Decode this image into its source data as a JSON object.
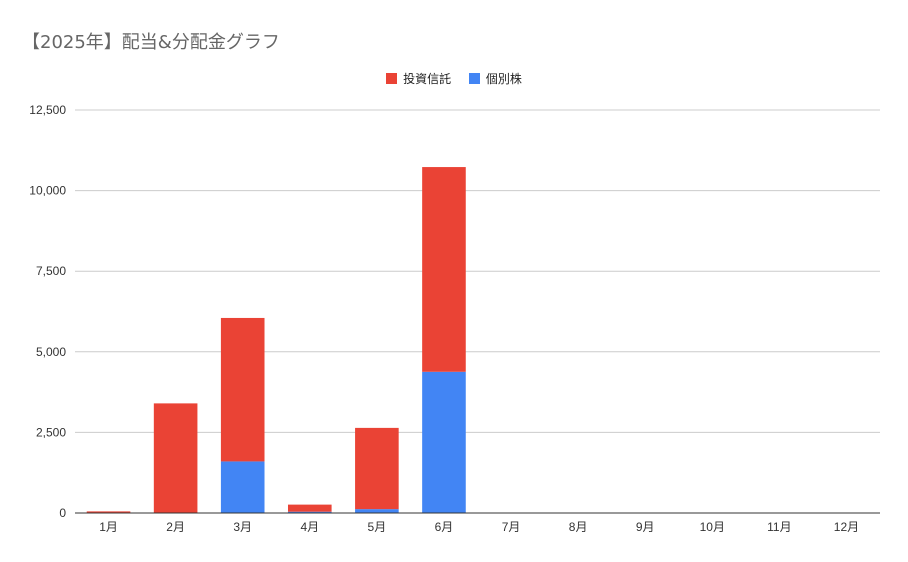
{
  "chart_data": {
    "type": "bar",
    "stacked": true,
    "title": "【2025年】配当&分配金グラフ",
    "xlabel": "",
    "ylabel": "",
    "categories": [
      "1月",
      "2月",
      "3月",
      "4月",
      "5月",
      "6月",
      "7月",
      "8月",
      "9月",
      "10月",
      "11月",
      "12月"
    ],
    "series": [
      {
        "name": "個別株",
        "color": "#4285f4",
        "values": [
          0,
          0,
          1600,
          40,
          120,
          4380,
          0,
          0,
          0,
          0,
          0,
          0
        ]
      },
      {
        "name": "投資信託",
        "color": "#ea4335",
        "values": [
          50,
          3400,
          4450,
          220,
          2520,
          6350,
          0,
          0,
          0,
          0,
          0,
          0
        ]
      }
    ],
    "legend_order": [
      "投資信託",
      "個別株"
    ],
    "ylim": [
      0,
      12500
    ],
    "yticks": [
      0,
      2500,
      5000,
      7500,
      10000,
      12500
    ],
    "ytick_labels": [
      "0",
      "2,500",
      "5,000",
      "7,500",
      "10,000",
      "12,500"
    ],
    "grid": true,
    "legend_position": "top-center"
  }
}
